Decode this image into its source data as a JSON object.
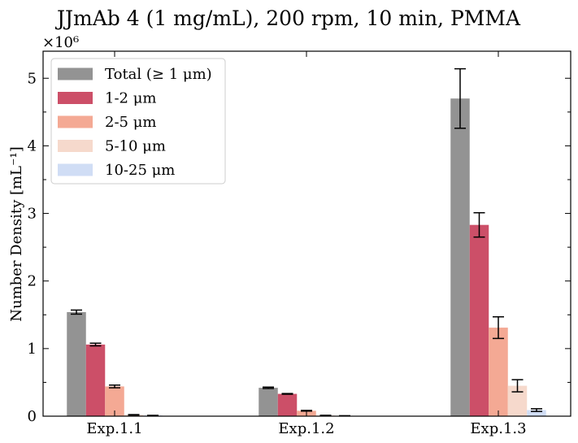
{
  "chart_data": {
    "type": "bar",
    "title": "JJmAb 4 (1 mg/mL), 200 rpm, 10 min, PMMA",
    "xlabel": "",
    "ylabel": "Number Density [mL⁻¹]",
    "y_multiplier": "×10⁶",
    "y_scale": 1000000,
    "ylim": [
      0,
      5.4
    ],
    "yticks": [
      "0",
      "1",
      "2",
      "3",
      "4",
      "5"
    ],
    "categories": [
      "Exp.1.1",
      "Exp.1.2",
      "Exp.1.3"
    ],
    "legend_position": "top-left",
    "grid": false,
    "series": [
      {
        "name": "Total (≥ 1 μm)",
        "color": "#939393",
        "values": [
          1.54,
          0.42,
          4.7
        ],
        "errors": [
          0.03,
          0.01,
          0.44
        ]
      },
      {
        "name": "1-2 μm",
        "color": "#cc4f68",
        "values": [
          1.06,
          0.33,
          2.83
        ],
        "errors": [
          0.02,
          0.005,
          0.18
        ]
      },
      {
        "name": "2-5 μm",
        "color": "#f4a994",
        "values": [
          0.44,
          0.08,
          1.31
        ],
        "errors": [
          0.02,
          0.005,
          0.16
        ]
      },
      {
        "name": "5-10 μm",
        "color": "#f6d9cc",
        "values": [
          0.02,
          0.01,
          0.45
        ],
        "errors": [
          0.003,
          0.003,
          0.09
        ]
      },
      {
        "name": "10-25 μm",
        "color": "#d0ddf5",
        "values": [
          0.01,
          0.005,
          0.09
        ],
        "errors": [
          0.002,
          0.002,
          0.02
        ]
      }
    ]
  }
}
